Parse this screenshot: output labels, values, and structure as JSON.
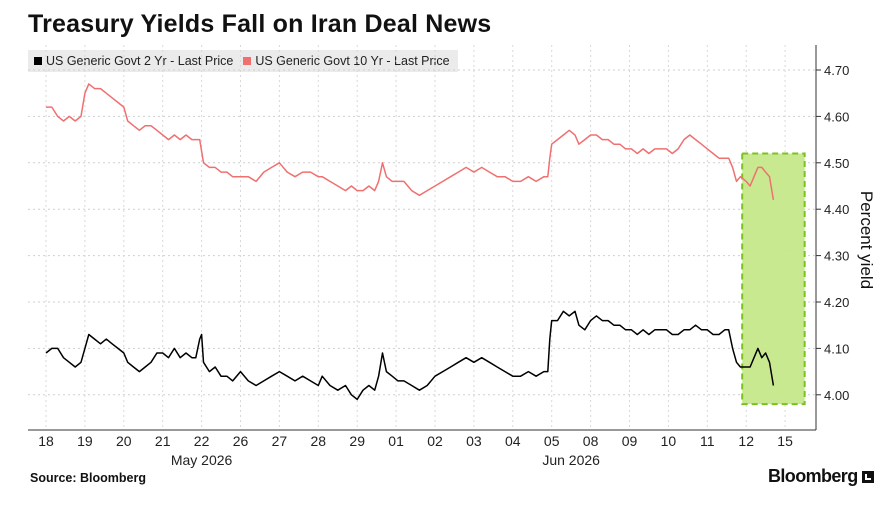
{
  "title": "Treasury Yields Fall on Iran Deal News",
  "source": "Source: Bloomberg",
  "brand": "Bloomberg",
  "chart_data": {
    "type": "line",
    "title": "Treasury Yields Fall on Iran Deal News",
    "ylabel": "Percent yield",
    "ylim": [
      3.93,
      4.76
    ],
    "yticks": [
      "4.70",
      "4.60",
      "4.50",
      "4.40",
      "4.30",
      "4.20",
      "4.10",
      "4.00"
    ],
    "xticks": [
      "18",
      "19",
      "20",
      "21",
      "22",
      "26",
      "27",
      "28",
      "29",
      "01",
      "02",
      "03",
      "04",
      "05",
      "08",
      "09",
      "10",
      "11",
      "12",
      "15"
    ],
    "months": [
      {
        "label": "May 2026",
        "at_tick": 4
      },
      {
        "label": "Jun 2026",
        "at_tick": 13.5
      }
    ],
    "grid": true,
    "legend_position": "top-left",
    "highlight": {
      "from_tick": 18,
      "to_tick": 19.4,
      "ymin": 3.98,
      "ymax": 4.52,
      "color": "#c6e88b",
      "border": "#7bc21e"
    },
    "series": [
      {
        "name": "US Generic Govt 2 Yr - Last Price",
        "color": "#000000",
        "points": [
          [
            0,
            4.09
          ],
          [
            0.15,
            4.1
          ],
          [
            0.3,
            4.1
          ],
          [
            0.45,
            4.08
          ],
          [
            0.6,
            4.07
          ],
          [
            0.75,
            4.06
          ],
          [
            0.9,
            4.07
          ],
          [
            1.0,
            4.1
          ],
          [
            1.1,
            4.13
          ],
          [
            1.25,
            4.12
          ],
          [
            1.4,
            4.11
          ],
          [
            1.55,
            4.12
          ],
          [
            1.7,
            4.11
          ],
          [
            1.85,
            4.1
          ],
          [
            2.0,
            4.09
          ],
          [
            2.1,
            4.07
          ],
          [
            2.25,
            4.06
          ],
          [
            2.4,
            4.05
          ],
          [
            2.55,
            4.06
          ],
          [
            2.7,
            4.07
          ],
          [
            2.85,
            4.09
          ],
          [
            3.0,
            4.09
          ],
          [
            3.15,
            4.08
          ],
          [
            3.3,
            4.1
          ],
          [
            3.45,
            4.08
          ],
          [
            3.6,
            4.09
          ],
          [
            3.75,
            4.08
          ],
          [
            3.85,
            4.08
          ],
          [
            3.95,
            4.12
          ],
          [
            4.0,
            4.13
          ],
          [
            4.05,
            4.07
          ],
          [
            4.2,
            4.05
          ],
          [
            4.35,
            4.06
          ],
          [
            4.5,
            4.04
          ],
          [
            4.65,
            4.04
          ],
          [
            4.8,
            4.03
          ],
          [
            5.0,
            4.05
          ],
          [
            5.2,
            4.03
          ],
          [
            5.4,
            4.02
          ],
          [
            5.6,
            4.03
          ],
          [
            5.8,
            4.04
          ],
          [
            6.0,
            4.05
          ],
          [
            6.2,
            4.04
          ],
          [
            6.4,
            4.03
          ],
          [
            6.6,
            4.04
          ],
          [
            6.8,
            4.03
          ],
          [
            7.0,
            4.02
          ],
          [
            7.1,
            4.04
          ],
          [
            7.3,
            4.02
          ],
          [
            7.5,
            4.01
          ],
          [
            7.7,
            4.02
          ],
          [
            7.85,
            4.0
          ],
          [
            8.0,
            3.99
          ],
          [
            8.15,
            4.01
          ],
          [
            8.3,
            4.02
          ],
          [
            8.45,
            4.01
          ],
          [
            8.55,
            4.04
          ],
          [
            8.65,
            4.09
          ],
          [
            8.75,
            4.05
          ],
          [
            8.9,
            4.04
          ],
          [
            9.05,
            4.03
          ],
          [
            9.2,
            4.03
          ],
          [
            9.4,
            4.02
          ],
          [
            9.6,
            4.01
          ],
          [
            9.8,
            4.02
          ],
          [
            10.0,
            4.04
          ],
          [
            10.2,
            4.05
          ],
          [
            10.4,
            4.06
          ],
          [
            10.6,
            4.07
          ],
          [
            10.8,
            4.08
          ],
          [
            11.0,
            4.07
          ],
          [
            11.2,
            4.08
          ],
          [
            11.4,
            4.07
          ],
          [
            11.6,
            4.06
          ],
          [
            11.8,
            4.05
          ],
          [
            12.0,
            4.04
          ],
          [
            12.2,
            4.04
          ],
          [
            12.4,
            4.05
          ],
          [
            12.6,
            4.04
          ],
          [
            12.8,
            4.05
          ],
          [
            12.9,
            4.05
          ],
          [
            12.95,
            4.12
          ],
          [
            13.0,
            4.16
          ],
          [
            13.15,
            4.16
          ],
          [
            13.3,
            4.18
          ],
          [
            13.45,
            4.17
          ],
          [
            13.6,
            4.18
          ],
          [
            13.7,
            4.15
          ],
          [
            13.85,
            4.14
          ],
          [
            14.0,
            4.16
          ],
          [
            14.15,
            4.17
          ],
          [
            14.3,
            4.16
          ],
          [
            14.45,
            4.16
          ],
          [
            14.6,
            4.15
          ],
          [
            14.75,
            4.15
          ],
          [
            14.9,
            4.14
          ],
          [
            15.05,
            4.14
          ],
          [
            15.2,
            4.13
          ],
          [
            15.35,
            4.14
          ],
          [
            15.5,
            4.13
          ],
          [
            15.65,
            4.14
          ],
          [
            15.8,
            4.14
          ],
          [
            15.95,
            4.14
          ],
          [
            16.1,
            4.13
          ],
          [
            16.25,
            4.13
          ],
          [
            16.4,
            4.14
          ],
          [
            16.55,
            4.14
          ],
          [
            16.7,
            4.15
          ],
          [
            16.85,
            4.14
          ],
          [
            17.0,
            4.14
          ],
          [
            17.15,
            4.13
          ],
          [
            17.3,
            4.13
          ],
          [
            17.45,
            4.14
          ],
          [
            17.55,
            4.14
          ],
          [
            17.65,
            4.1
          ],
          [
            17.75,
            4.07
          ],
          [
            17.85,
            4.06
          ],
          [
            18.0,
            4.06
          ],
          [
            18.1,
            4.06
          ],
          [
            18.2,
            4.08
          ],
          [
            18.3,
            4.1
          ],
          [
            18.4,
            4.08
          ],
          [
            18.5,
            4.09
          ],
          [
            18.6,
            4.07
          ],
          [
            18.7,
            4.02
          ]
        ]
      },
      {
        "name": "US Generic Govt 10 Yr - Last Price",
        "color": "#f07070",
        "points": [
          [
            0,
            4.62
          ],
          [
            0.15,
            4.62
          ],
          [
            0.3,
            4.6
          ],
          [
            0.45,
            4.59
          ],
          [
            0.6,
            4.6
          ],
          [
            0.75,
            4.59
          ],
          [
            0.9,
            4.6
          ],
          [
            1.0,
            4.65
          ],
          [
            1.1,
            4.67
          ],
          [
            1.25,
            4.66
          ],
          [
            1.4,
            4.66
          ],
          [
            1.55,
            4.65
          ],
          [
            1.7,
            4.64
          ],
          [
            1.85,
            4.63
          ],
          [
            2.0,
            4.62
          ],
          [
            2.1,
            4.59
          ],
          [
            2.25,
            4.58
          ],
          [
            2.4,
            4.57
          ],
          [
            2.55,
            4.58
          ],
          [
            2.7,
            4.58
          ],
          [
            2.85,
            4.57
          ],
          [
            3.0,
            4.56
          ],
          [
            3.15,
            4.55
          ],
          [
            3.3,
            4.56
          ],
          [
            3.45,
            4.55
          ],
          [
            3.6,
            4.56
          ],
          [
            3.75,
            4.55
          ],
          [
            3.85,
            4.55
          ],
          [
            3.95,
            4.55
          ],
          [
            4.05,
            4.5
          ],
          [
            4.2,
            4.49
          ],
          [
            4.35,
            4.49
          ],
          [
            4.5,
            4.48
          ],
          [
            4.65,
            4.48
          ],
          [
            4.8,
            4.47
          ],
          [
            5.0,
            4.47
          ],
          [
            5.2,
            4.47
          ],
          [
            5.4,
            4.46
          ],
          [
            5.6,
            4.48
          ],
          [
            5.8,
            4.49
          ],
          [
            6.0,
            4.5
          ],
          [
            6.2,
            4.48
          ],
          [
            6.4,
            4.47
          ],
          [
            6.6,
            4.48
          ],
          [
            6.8,
            4.48
          ],
          [
            7.0,
            4.47
          ],
          [
            7.1,
            4.47
          ],
          [
            7.3,
            4.46
          ],
          [
            7.5,
            4.45
          ],
          [
            7.7,
            4.44
          ],
          [
            7.85,
            4.45
          ],
          [
            8.0,
            4.44
          ],
          [
            8.15,
            4.44
          ],
          [
            8.3,
            4.45
          ],
          [
            8.45,
            4.44
          ],
          [
            8.55,
            4.46
          ],
          [
            8.65,
            4.5
          ],
          [
            8.75,
            4.47
          ],
          [
            8.9,
            4.46
          ],
          [
            9.05,
            4.46
          ],
          [
            9.2,
            4.46
          ],
          [
            9.4,
            4.44
          ],
          [
            9.6,
            4.43
          ],
          [
            9.8,
            4.44
          ],
          [
            10.0,
            4.45
          ],
          [
            10.2,
            4.46
          ],
          [
            10.4,
            4.47
          ],
          [
            10.6,
            4.48
          ],
          [
            10.8,
            4.49
          ],
          [
            11.0,
            4.48
          ],
          [
            11.2,
            4.49
          ],
          [
            11.4,
            4.48
          ],
          [
            11.6,
            4.47
          ],
          [
            11.8,
            4.47
          ],
          [
            12.0,
            4.46
          ],
          [
            12.2,
            4.46
          ],
          [
            12.4,
            4.47
          ],
          [
            12.6,
            4.46
          ],
          [
            12.8,
            4.47
          ],
          [
            12.9,
            4.47
          ],
          [
            12.95,
            4.51
          ],
          [
            13.0,
            4.54
          ],
          [
            13.15,
            4.55
          ],
          [
            13.3,
            4.56
          ],
          [
            13.45,
            4.57
          ],
          [
            13.6,
            4.56
          ],
          [
            13.7,
            4.54
          ],
          [
            13.85,
            4.55
          ],
          [
            14.0,
            4.56
          ],
          [
            14.15,
            4.56
          ],
          [
            14.3,
            4.55
          ],
          [
            14.45,
            4.55
          ],
          [
            14.6,
            4.54
          ],
          [
            14.75,
            4.54
          ],
          [
            14.9,
            4.53
          ],
          [
            15.05,
            4.53
          ],
          [
            15.2,
            4.52
          ],
          [
            15.35,
            4.53
          ],
          [
            15.5,
            4.52
          ],
          [
            15.65,
            4.53
          ],
          [
            15.8,
            4.53
          ],
          [
            15.95,
            4.53
          ],
          [
            16.1,
            4.52
          ],
          [
            16.25,
            4.53
          ],
          [
            16.4,
            4.55
          ],
          [
            16.55,
            4.56
          ],
          [
            16.7,
            4.55
          ],
          [
            16.85,
            4.54
          ],
          [
            17.0,
            4.53
          ],
          [
            17.15,
            4.52
          ],
          [
            17.3,
            4.51
          ],
          [
            17.45,
            4.51
          ],
          [
            17.55,
            4.51
          ],
          [
            17.65,
            4.49
          ],
          [
            17.75,
            4.46
          ],
          [
            17.85,
            4.47
          ],
          [
            18.0,
            4.46
          ],
          [
            18.1,
            4.45
          ],
          [
            18.2,
            4.47
          ],
          [
            18.3,
            4.49
          ],
          [
            18.4,
            4.49
          ],
          [
            18.5,
            4.48
          ],
          [
            18.6,
            4.47
          ],
          [
            18.7,
            4.42
          ]
        ]
      }
    ]
  }
}
